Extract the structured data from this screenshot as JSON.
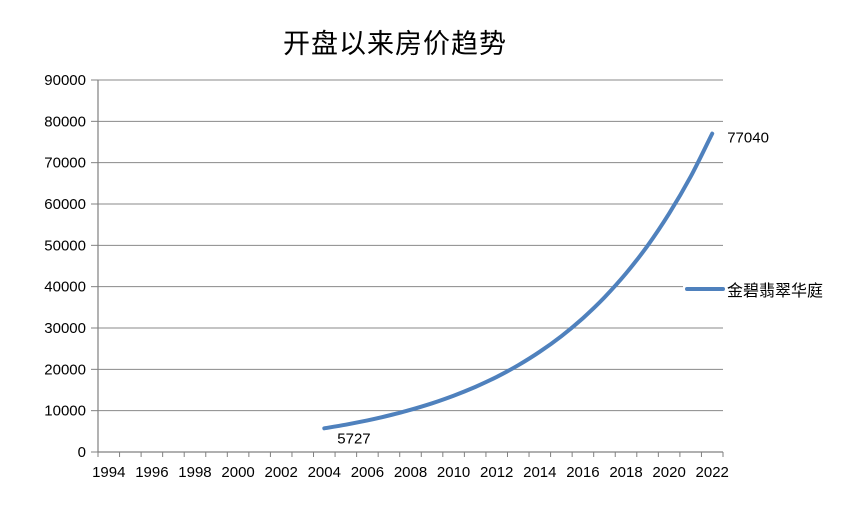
{
  "title": "开盘以来房价趋势",
  "legend": {
    "label": "金碧翡翠华庭"
  },
  "chart_data": {
    "type": "line",
    "title": "开盘以来房价趋势",
    "x": [
      2004,
      2005,
      2006,
      2007,
      2008,
      2009,
      2010,
      2011,
      2012,
      2013,
      2014,
      2015,
      2016,
      2017,
      2018,
      2019,
      2020,
      2021,
      2022
    ],
    "series": [
      {
        "name": "金碧翡翠华庭",
        "values": [
          5727,
          6616,
          7644,
          8831,
          10202,
          11787,
          13617,
          15731,
          18174,
          20996,
          24257,
          28024,
          32376,
          37404,
          43212,
          49922,
          57674,
          66630,
          77040
        ]
      }
    ],
    "x_axis": {
      "first_label": 1994,
      "last_label": 2022,
      "label_step": 2,
      "tick_interval_years": 1
    },
    "y_axis": {
      "min": 0,
      "max": 90000,
      "step": 10000
    },
    "ylim": [
      0,
      90000
    ],
    "data_labels": [
      {
        "x": 2004,
        "text": "5727"
      },
      {
        "x": 2022,
        "text": "77040"
      }
    ],
    "legend_position": "right",
    "grid": true,
    "colors": {
      "line": "#4F81BD",
      "grid": "#8A8A8A",
      "axis": "#808080",
      "text": "#000000",
      "background": "#FFFFFF"
    }
  }
}
